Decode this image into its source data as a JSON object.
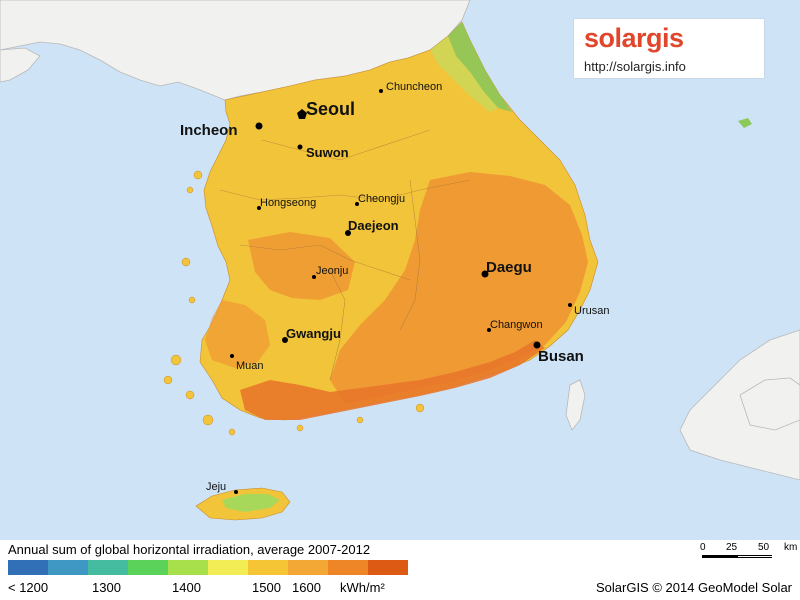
{
  "logo": {
    "part1": "solar",
    "part2": "gis",
    "url": "http://solargis.info"
  },
  "cities": [
    {
      "name": "Seoul",
      "size": "major"
    },
    {
      "name": "Incheon",
      "size": "major"
    },
    {
      "name": "Suwon",
      "size": "major"
    },
    {
      "name": "Chuncheon",
      "size": "minor"
    },
    {
      "name": "Hongseong",
      "size": "minor"
    },
    {
      "name": "Cheongju",
      "size": "minor"
    },
    {
      "name": "Daejeon",
      "size": "major"
    },
    {
      "name": "Jeonju",
      "size": "minor"
    },
    {
      "name": "Daegu",
      "size": "major"
    },
    {
      "name": "Urusan",
      "size": "minor"
    },
    {
      "name": "Changwon",
      "size": "minor"
    },
    {
      "name": "Busan",
      "size": "major"
    },
    {
      "name": "Gwangju",
      "size": "major"
    },
    {
      "name": "Muan",
      "size": "minor"
    },
    {
      "name": "Jeju",
      "size": "minor"
    }
  ],
  "legend": {
    "title": "Annual sum of global horizontal irradiation, average 2007-2012",
    "colors": [
      "#3170b7",
      "#3f97c3",
      "#45bba0",
      "#5bd25a",
      "#a8e04c",
      "#f2ec55",
      "#f6c535",
      "#f3a734",
      "#ee8526",
      "#dc5a13"
    ],
    "labels": [
      "< 1200",
      "1300",
      "1400",
      "1500",
      "1600"
    ],
    "unit": "kWh/m²"
  },
  "scale": {
    "labels": [
      "0",
      "25",
      "50",
      "km"
    ]
  },
  "copyright": "SolarGIS © 2014 GeoModel Solar",
  "colors": {
    "sea": "#cfe3f7",
    "land_other": "#f1f1ef",
    "yellow": "#f2c43a",
    "orange": "#ef9833",
    "deep_orange": "#e8772a",
    "green": "#8cc85a"
  }
}
